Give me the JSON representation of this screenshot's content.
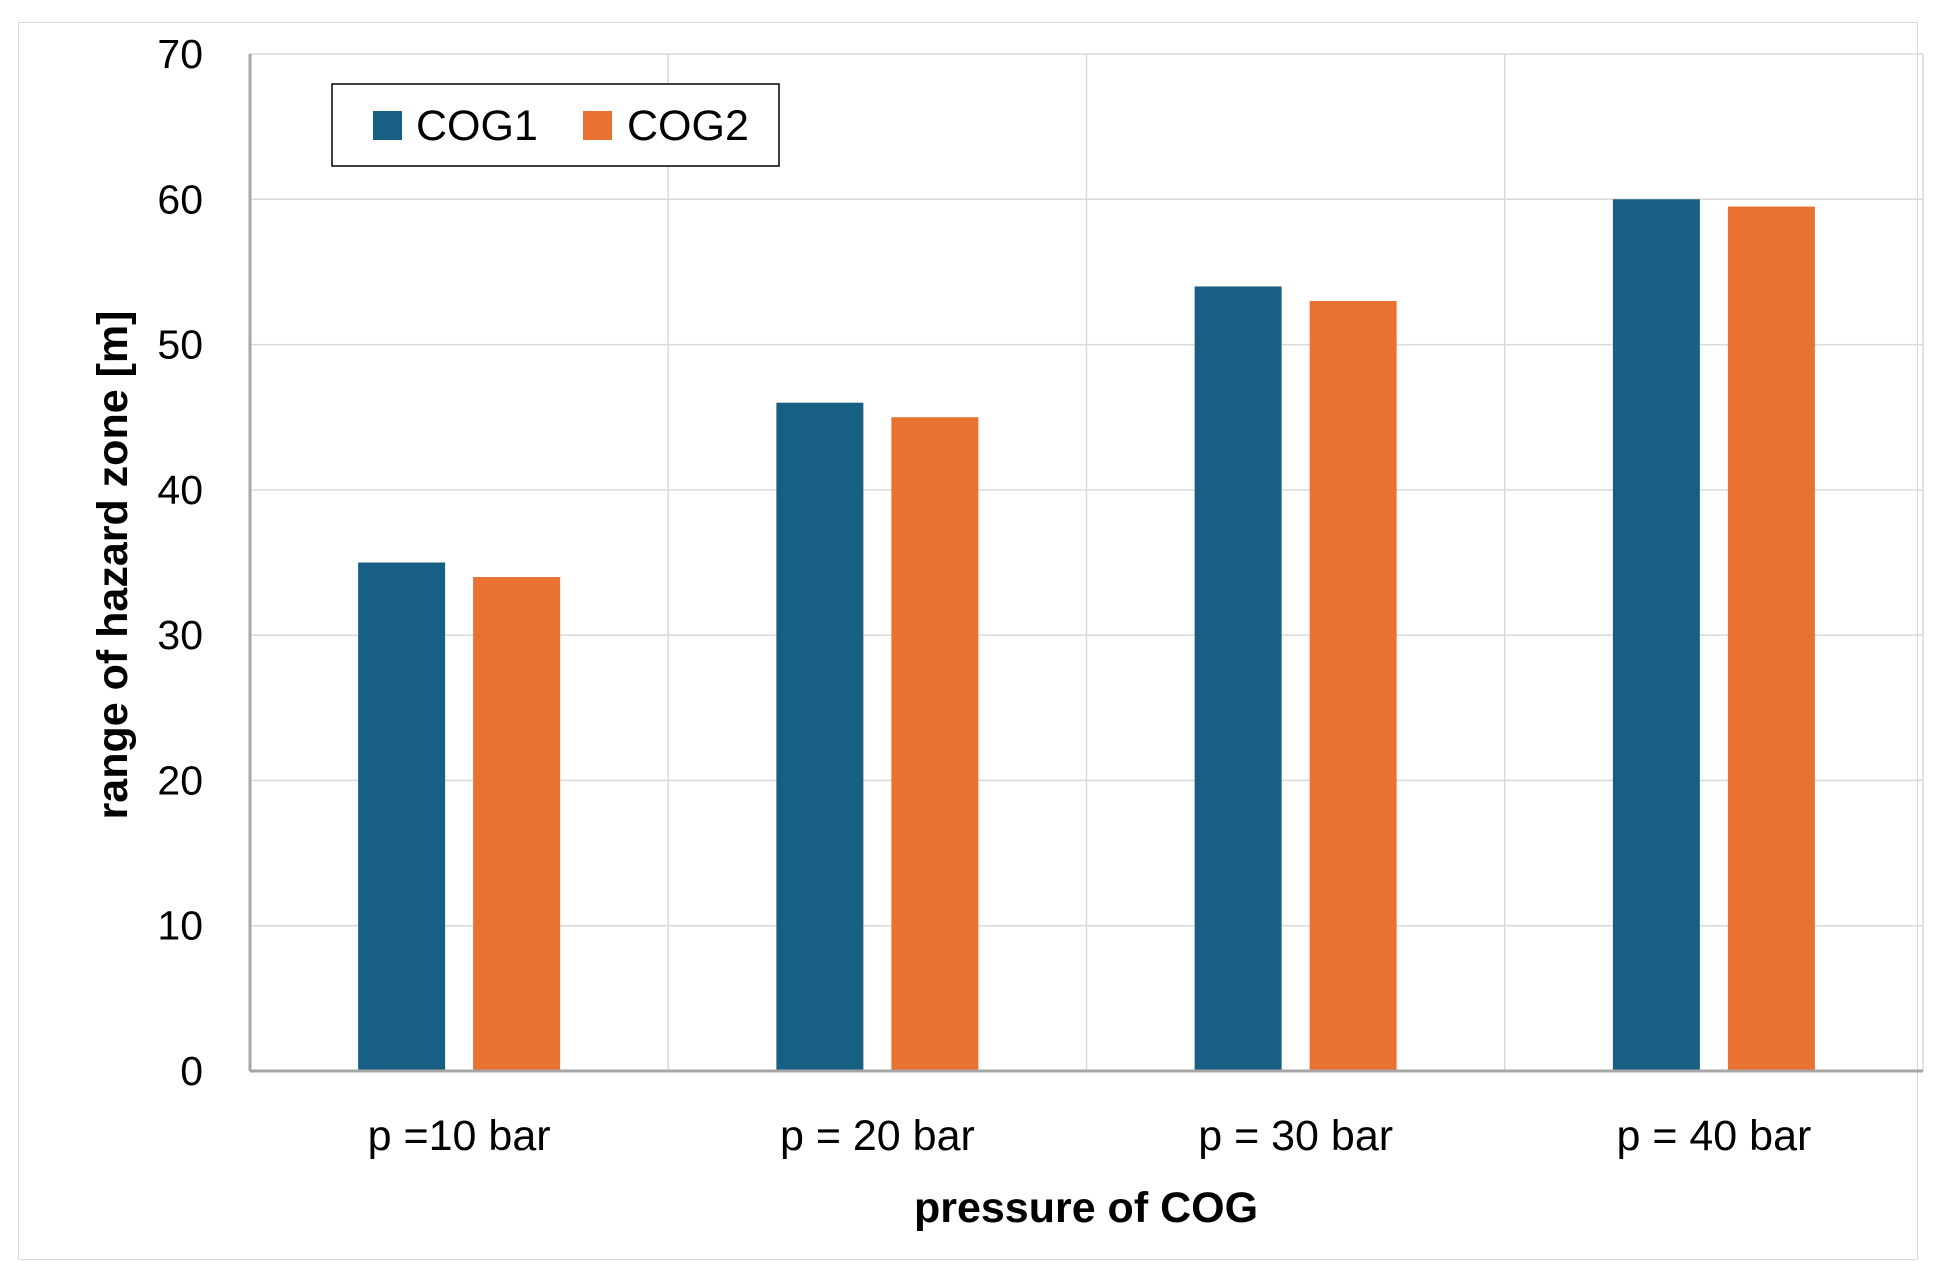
{
  "chart_data": {
    "type": "bar",
    "title": "",
    "xlabel": "pressure of COG",
    "ylabel": "range of hazard zone [m]",
    "categories": [
      "p =10 bar",
      "p = 20 bar",
      "p = 30 bar",
      "p = 40 bar"
    ],
    "series": [
      {
        "name": "COG1",
        "color": "#186083",
        "values": [
          35,
          46,
          54,
          60
        ]
      },
      {
        "name": "COG2",
        "color": "#E97132",
        "values": [
          34,
          45,
          53,
          59.5
        ]
      }
    ],
    "ylim": [
      0,
      70
    ],
    "yticks": [
      0,
      10,
      20,
      30,
      40,
      50,
      60,
      70
    ],
    "grid": true,
    "legend_position": "top-left"
  }
}
